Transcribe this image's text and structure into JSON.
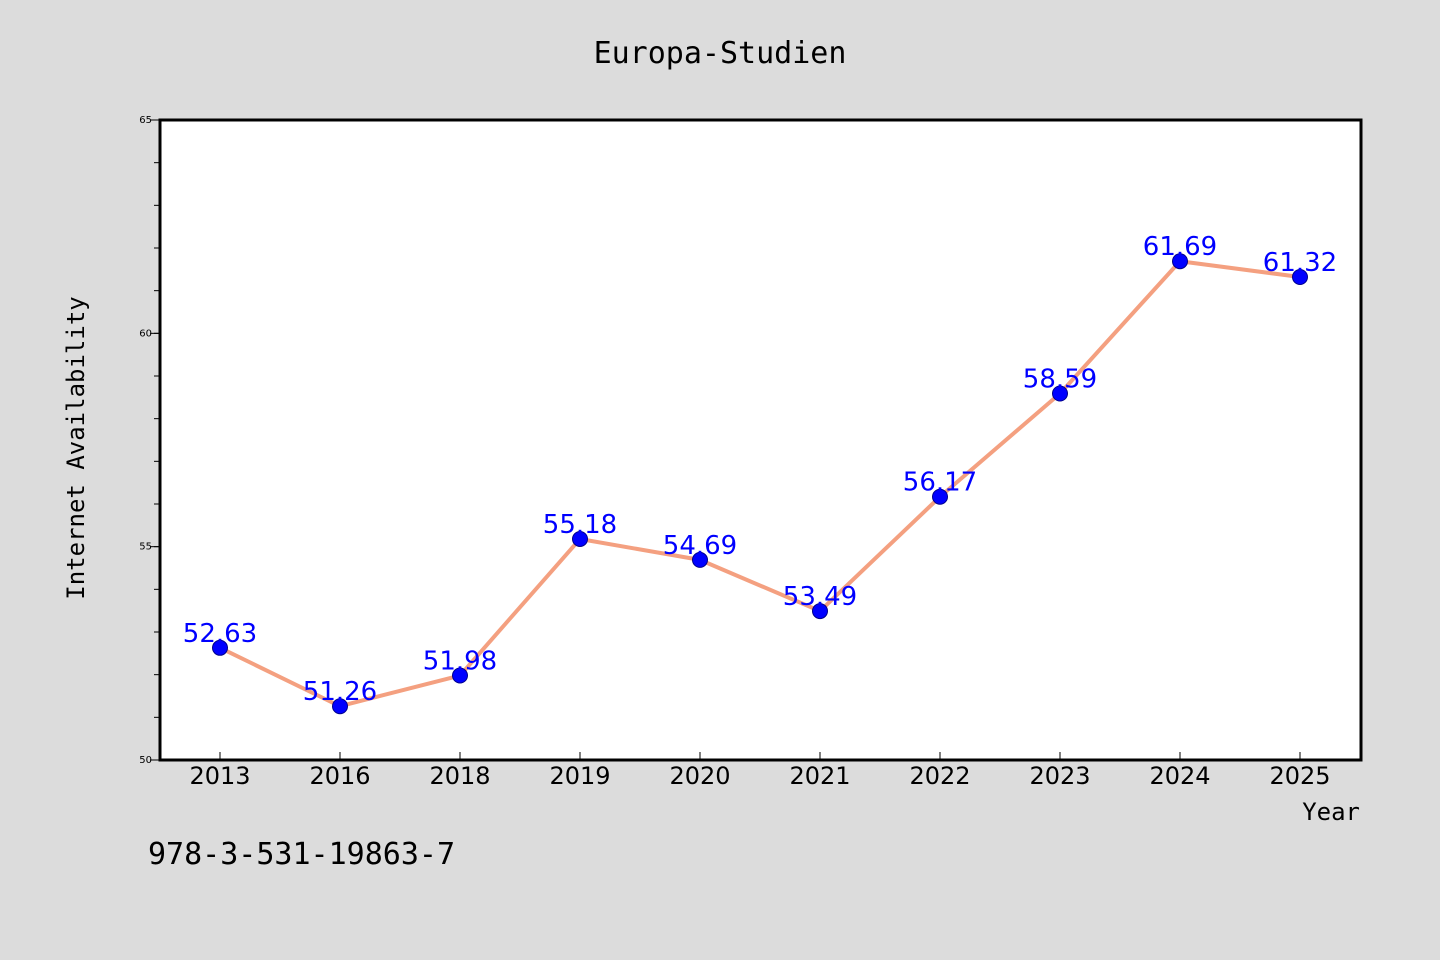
{
  "chart_data": {
    "type": "line",
    "title": "Europa-Studien",
    "xlabel": "Year",
    "ylabel": "Internet Availability",
    "categories": [
      "2013",
      "2016",
      "2018",
      "2019",
      "2020",
      "2021",
      "2022",
      "2023",
      "2024",
      "2025"
    ],
    "values": [
      52.63,
      51.26,
      51.98,
      55.18,
      54.69,
      53.49,
      56.17,
      58.59,
      61.69,
      61.32
    ],
    "data_labels": [
      "52.63",
      "51.26",
      "51.98",
      "55.18",
      "54.69",
      "53.49",
      "56.17",
      "58.59",
      "61.69",
      "61.32"
    ],
    "ylim": [
      50,
      65
    ],
    "yticks": [
      50,
      55,
      60,
      65
    ],
    "yminor_step": 1,
    "grid": false,
    "legend": "none",
    "colors": {
      "background": "#dcdcdc",
      "plot_background": "#ffffff",
      "line": "#f4a080",
      "marker": "#0000ff",
      "data_label": "#0000ff"
    }
  },
  "footer_text": "978-3-531-19863-7"
}
